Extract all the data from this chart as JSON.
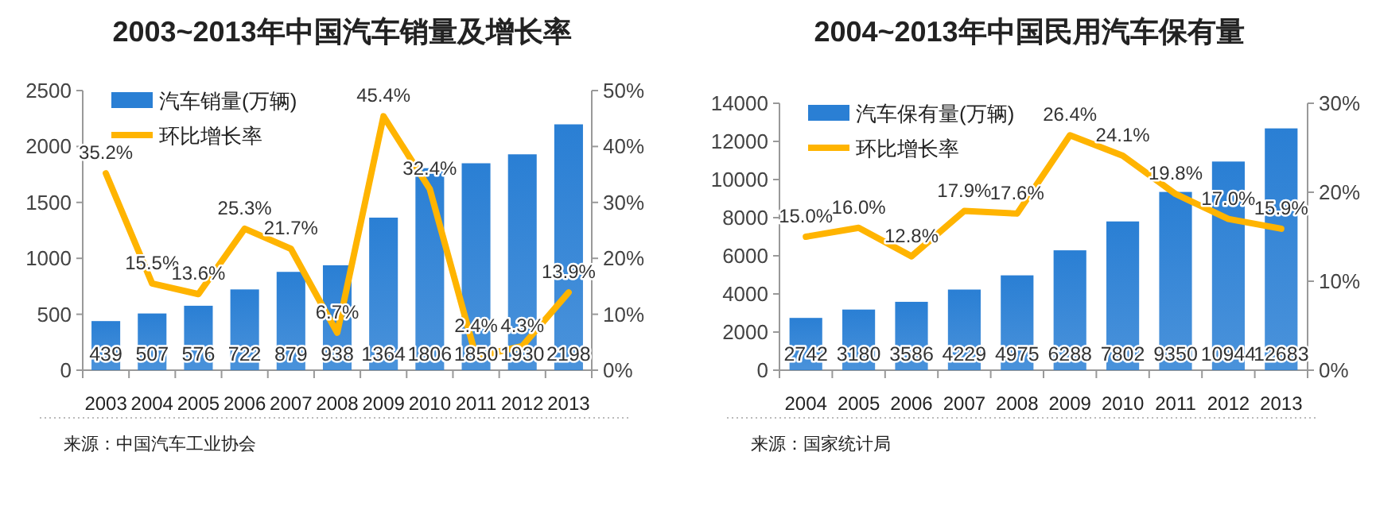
{
  "chart_data": [
    {
      "type": "bar",
      "title": "2003~2013年中国汽车销量及增长率",
      "categories": [
        "2003",
        "2004",
        "2005",
        "2006",
        "2007",
        "2008",
        "2009",
        "2010",
        "2011",
        "2012",
        "2013"
      ],
      "series": [
        {
          "name": "汽车销量(万辆)",
          "color": "#2a7fd4",
          "values": [
            439,
            507,
            576,
            722,
            879,
            938,
            1364,
            1806,
            1850,
            1930,
            2198
          ]
        },
        {
          "name": "环比增长率",
          "type": "line",
          "axis": "y2",
          "color": "#ffb400",
          "values": [
            35.2,
            15.5,
            13.6,
            25.3,
            21.7,
            6.7,
            45.4,
            32.4,
            2.4,
            4.3,
            13.9
          ],
          "value_labels": [
            "35.2%",
            "15.5%",
            "13.6%",
            "25.3%",
            "21.7%",
            "6.7%",
            "45.4%",
            "32.4%",
            "2.4%",
            "4.3%",
            "13.9%"
          ]
        }
      ],
      "ylim": [
        0,
        2500
      ],
      "yticks": [
        0,
        500,
        1000,
        1500,
        2000,
        2500
      ],
      "y2lim": [
        0,
        50
      ],
      "y2ticks": [
        {
          "value": 0,
          "label": "0%"
        },
        {
          "value": 10,
          "label": "10%"
        },
        {
          "value": 20,
          "label": "20%"
        },
        {
          "value": 30,
          "label": "30%"
        },
        {
          "value": 40,
          "label": "40%"
        },
        {
          "value": 50,
          "label": "50%"
        }
      ],
      "data_labels": true,
      "legend": "top left",
      "annotations": [
        "来源：中国汽车工业协会"
      ]
    },
    {
      "type": "bar",
      "title": "2004~2013年中国民用汽车保有量",
      "categories": [
        "2004",
        "2005",
        "2006",
        "2007",
        "2008",
        "2009",
        "2010",
        "2011",
        "2012",
        "2013"
      ],
      "series": [
        {
          "name": "汽车保有量(万辆)",
          "color": "#2a7fd4",
          "values": [
            2742,
            3180,
            3586,
            4229,
            4975,
            6288,
            7802,
            9350,
            10944,
            12683
          ]
        },
        {
          "name": "环比增长率",
          "type": "line",
          "axis": "y2",
          "color": "#ffb400",
          "values": [
            15.0,
            16.0,
            12.8,
            17.9,
            17.6,
            26.4,
            24.1,
            19.8,
            17.0,
            15.9
          ],
          "value_labels": [
            "15.0%",
            "16.0%",
            "12.8%",
            "17.9%",
            "17.6%",
            "26.4%",
            "24.1%",
            "19.8%",
            "17.0%",
            "15.9%"
          ]
        }
      ],
      "ylim": [
        0,
        14000
      ],
      "yticks": [
        0,
        2000,
        4000,
        6000,
        8000,
        10000,
        12000,
        14000
      ],
      "y2lim": [
        0,
        30
      ],
      "y2ticks": [
        {
          "value": 0,
          "label": "0%"
        },
        {
          "value": 10,
          "label": "10%"
        },
        {
          "value": 20,
          "label": "20%"
        },
        {
          "value": 30,
          "label": "30%"
        }
      ],
      "data_labels": true,
      "legend": "top left",
      "annotations": [
        "来源：国家统计局"
      ]
    }
  ]
}
